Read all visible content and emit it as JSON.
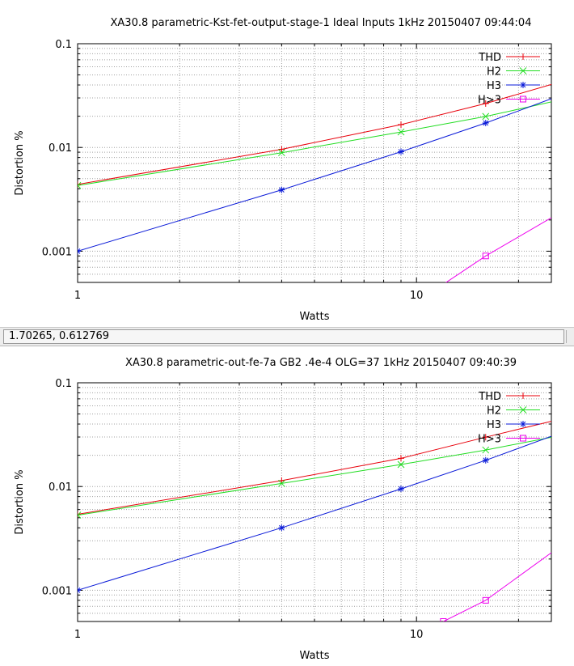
{
  "status_bar": {
    "coordinates": "1.70265,  0.612769"
  },
  "colors": {
    "THD": "#e8000b",
    "H2": "#22dd22",
    "H3": "#0a1ad8",
    "H>3": "#ee00ee",
    "grid": "#a0a0a0"
  },
  "chart_data": [
    {
      "type": "line",
      "title": "XA30.8 parametric-Kst-fet-output-stage-1 Ideal Inputs 1kHz 20150407 09:44:04",
      "xlabel": "Watts",
      "ylabel": "Distortion %",
      "xscale": "log",
      "yscale": "log",
      "xlim": [
        1,
        25
      ],
      "ylim": [
        0.0005,
        0.1
      ],
      "xticks": [
        {
          "value": 1,
          "label": "1"
        },
        {
          "value": 10,
          "label": "10"
        }
      ],
      "yticks": [
        {
          "value": 0.001,
          "label": "0.001"
        },
        {
          "value": 0.01,
          "label": "0.01"
        },
        {
          "value": 0.1,
          "label": "0.1"
        }
      ],
      "grid": true,
      "legend_position": "top-right",
      "series": [
        {
          "name": "THD",
          "marker": "plus",
          "points": [
            [
              1,
              0.0044
            ],
            [
              4,
              0.0096
            ],
            [
              9,
              0.0166
            ],
            [
              16,
              0.0265
            ],
            [
              25,
              0.0405
            ]
          ]
        },
        {
          "name": "H2",
          "marker": "cross",
          "points": [
            [
              1,
              0.0043
            ],
            [
              4,
              0.0089
            ],
            [
              9,
              0.0141
            ],
            [
              16,
              0.0199
            ],
            [
              25,
              0.0275
            ]
          ]
        },
        {
          "name": "H3",
          "marker": "star",
          "points": [
            [
              1,
              0.001
            ],
            [
              4,
              0.0039
            ],
            [
              9,
              0.0091
            ],
            [
              16,
              0.0172
            ],
            [
              25,
              0.0295
            ]
          ]
        },
        {
          "name": "H>3",
          "marker": "square",
          "points": [
            [
              12,
              0.00048
            ],
            [
              16,
              0.0009
            ],
            [
              25,
              0.0021
            ]
          ]
        }
      ]
    },
    {
      "type": "line",
      "title": "XA30.8 parametric-out-fe-7a GB2 .4e-4 OLG=37 1kHz 20150407 09:40:39",
      "xlabel": "Watts",
      "ylabel": "Distortion %",
      "xscale": "log",
      "yscale": "log",
      "xlim": [
        1,
        25
      ],
      "ylim": [
        0.0005,
        0.1
      ],
      "xticks": [
        {
          "value": 1,
          "label": "1"
        },
        {
          "value": 10,
          "label": "10"
        }
      ],
      "yticks": [
        {
          "value": 0.001,
          "label": "0.001"
        },
        {
          "value": 0.01,
          "label": "0.01"
        },
        {
          "value": 0.1,
          "label": "0.1"
        }
      ],
      "grid": true,
      "legend_position": "top-right",
      "series": [
        {
          "name": "THD",
          "marker": "plus",
          "points": [
            [
              1,
              0.0054
            ],
            [
              4,
              0.0114
            ],
            [
              9,
              0.0187
            ],
            [
              16,
              0.0299
            ],
            [
              25,
              0.0425
            ]
          ]
        },
        {
          "name": "H2",
          "marker": "cross",
          "points": [
            [
              1,
              0.0053
            ],
            [
              4,
              0.0107
            ],
            [
              9,
              0.0163
            ],
            [
              16,
              0.0225
            ],
            [
              25,
              0.0298
            ]
          ]
        },
        {
          "name": "H3",
          "marker": "star",
          "points": [
            [
              1,
              0.001
            ],
            [
              4,
              0.004
            ],
            [
              9,
              0.0095
            ],
            [
              16,
              0.0179
            ],
            [
              25,
              0.0305
            ]
          ]
        },
        {
          "name": "H>3",
          "marker": "square",
          "points": [
            [
              12,
              0.0005
            ],
            [
              16,
              0.0008
            ],
            [
              25,
              0.0023
            ]
          ]
        }
      ]
    }
  ]
}
